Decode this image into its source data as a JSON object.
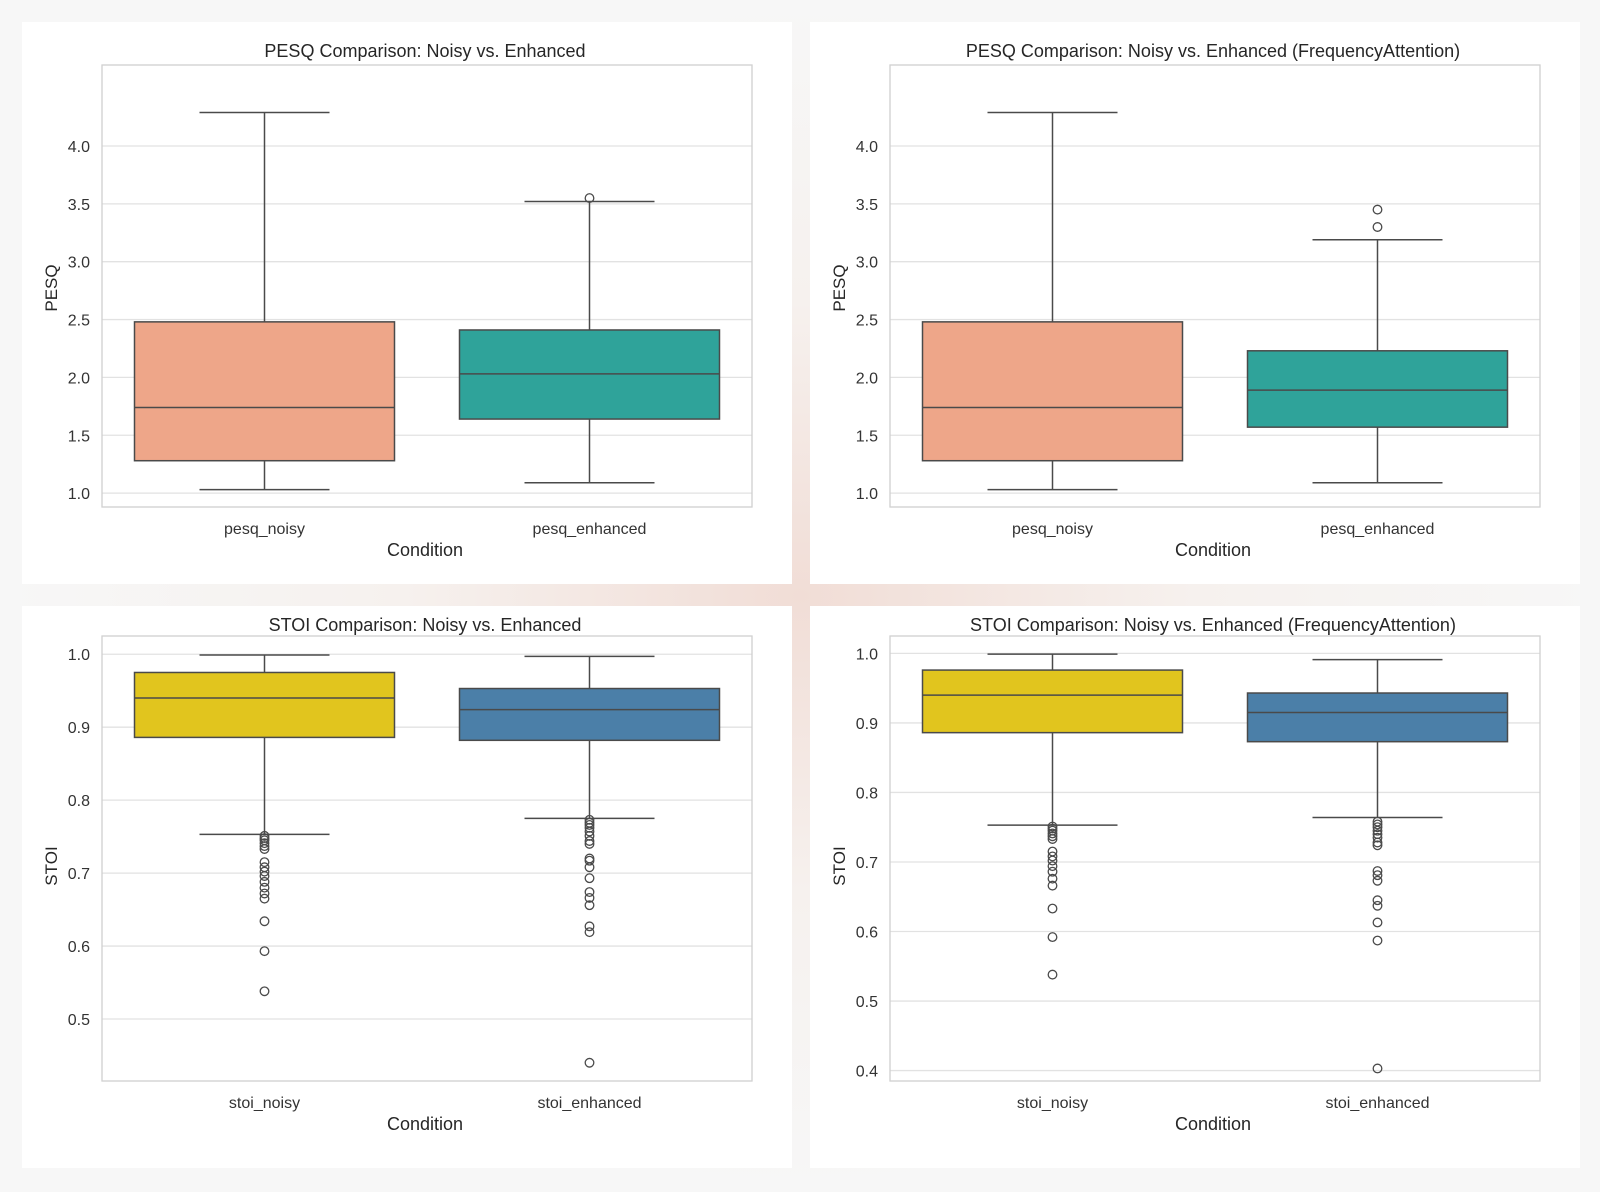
{
  "chart_data": [
    {
      "type": "box",
      "title": "PESQ Comparison: Noisy vs. Enhanced",
      "xlabel": "Condition",
      "ylabel": "PESQ",
      "ylim": [
        0.88,
        4.7
      ],
      "yticks": [
        "1.0",
        "1.5",
        "2.0",
        "2.5",
        "3.0",
        "3.5",
        "4.0"
      ],
      "categories": [
        "pesq_noisy",
        "pesq_enhanced"
      ],
      "colors": [
        "#eea689",
        "#2fa39a"
      ],
      "boxes": [
        {
          "name": "pesq_noisy",
          "whisker_low": 1.03,
          "q1": 1.28,
          "median": 1.74,
          "q3": 2.48,
          "whisker_high": 4.29,
          "outliers": []
        },
        {
          "name": "pesq_enhanced",
          "whisker_low": 1.09,
          "q1": 1.64,
          "median": 2.03,
          "q3": 2.41,
          "whisker_high": 3.52,
          "outliers": [
            3.55
          ]
        }
      ]
    },
    {
      "type": "box",
      "title": "PESQ Comparison: Noisy vs. Enhanced (FrequencyAttention)",
      "xlabel": "Condition",
      "ylabel": "PESQ",
      "ylim": [
        0.88,
        4.7
      ],
      "yticks": [
        "1.0",
        "1.5",
        "2.0",
        "2.5",
        "3.0",
        "3.5",
        "4.0"
      ],
      "categories": [
        "pesq_noisy",
        "pesq_enhanced"
      ],
      "colors": [
        "#eea689",
        "#2fa39a"
      ],
      "boxes": [
        {
          "name": "pesq_noisy",
          "whisker_low": 1.03,
          "q1": 1.28,
          "median": 1.74,
          "q3": 2.48,
          "whisker_high": 4.29,
          "outliers": []
        },
        {
          "name": "pesq_enhanced",
          "whisker_low": 1.09,
          "q1": 1.57,
          "median": 1.89,
          "q3": 2.23,
          "whisker_high": 3.19,
          "outliers": [
            3.3,
            3.45
          ]
        }
      ]
    },
    {
      "type": "box",
      "title": "STOI Comparison: Noisy vs. Enhanced",
      "xlabel": "Condition",
      "ylabel": "STOI",
      "ylim": [
        0.415,
        1.025
      ],
      "yticks": [
        "0.5",
        "0.6",
        "0.7",
        "0.8",
        "0.9",
        "1.0"
      ],
      "categories": [
        "stoi_noisy",
        "stoi_enhanced"
      ],
      "colors": [
        "#e1c51e",
        "#4b7fa8"
      ],
      "boxes": [
        {
          "name": "stoi_noisy",
          "whisker_low": 0.753,
          "q1": 0.886,
          "median": 0.94,
          "q3": 0.975,
          "whisker_high": 0.999,
          "outliers": [
            0.751,
            0.748,
            0.745,
            0.741,
            0.737,
            0.733,
            0.715,
            0.708,
            0.702,
            0.696,
            0.688,
            0.68,
            0.672,
            0.665,
            0.634,
            0.593,
            0.538
          ]
        },
        {
          "name": "stoi_enhanced",
          "whisker_low": 0.775,
          "q1": 0.882,
          "median": 0.924,
          "q3": 0.953,
          "whisker_high": 0.997,
          "outliers": [
            0.773,
            0.769,
            0.766,
            0.762,
            0.757,
            0.751,
            0.744,
            0.74,
            0.72,
            0.717,
            0.708,
            0.693,
            0.674,
            0.666,
            0.656,
            0.627,
            0.619,
            0.44
          ]
        }
      ]
    },
    {
      "type": "box",
      "title": "STOI Comparison: Noisy vs. Enhanced (FrequencyAttention)",
      "xlabel": "Condition",
      "ylabel": "STOI",
      "ylim": [
        0.385,
        1.025
      ],
      "yticks": [
        "0.4",
        "0.5",
        "0.6",
        "0.7",
        "0.8",
        "0.9",
        "1.0"
      ],
      "categories": [
        "stoi_noisy",
        "stoi_enhanced"
      ],
      "colors": [
        "#e1c51e",
        "#4b7fa8"
      ],
      "boxes": [
        {
          "name": "stoi_noisy",
          "whisker_low": 0.753,
          "q1": 0.886,
          "median": 0.94,
          "q3": 0.976,
          "whisker_high": 0.999,
          "outliers": [
            0.751,
            0.748,
            0.745,
            0.741,
            0.737,
            0.733,
            0.715,
            0.708,
            0.702,
            0.694,
            0.686,
            0.676,
            0.666,
            0.633,
            0.592,
            0.538
          ]
        },
        {
          "name": "stoi_enhanced",
          "whisker_low": 0.764,
          "q1": 0.873,
          "median": 0.915,
          "q3": 0.943,
          "whisker_high": 0.991,
          "outliers": [
            0.758,
            0.754,
            0.75,
            0.745,
            0.74,
            0.735,
            0.728,
            0.724,
            0.687,
            0.681,
            0.673,
            0.645,
            0.637,
            0.613,
            0.587,
            0.403
          ]
        }
      ]
    }
  ]
}
